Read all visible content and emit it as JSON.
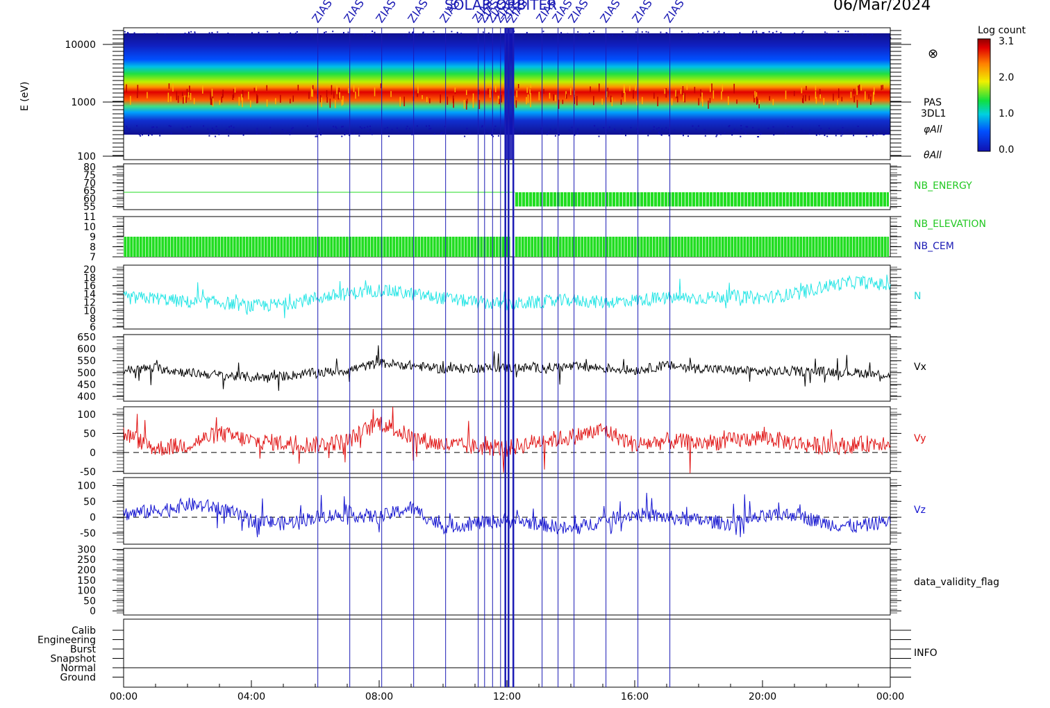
{
  "header": {
    "title": "SOLAR ORBITER",
    "date": "06/Mar/2024"
  },
  "colorbar": {
    "title": "Log count",
    "ticks": [
      "3.1",
      "2.0",
      "1.0",
      "0.0"
    ]
  },
  "event_labels": [
    "ZIAS",
    "ZIAS",
    "ZIAS",
    "ZIAS",
    "ZIAS",
    "ZIAS",
    "ZIAS",
    "ZIAS",
    "ZIAS",
    "ZIAS",
    "ZIAS",
    "ZIAS",
    "ZIAS",
    "ZIAS",
    "ZIAS",
    "ZIAS",
    "ZIAS"
  ],
  "chart_data": [
    {
      "type": "heatmap",
      "panel": "energy_spectrogram",
      "ylabel": "E (eV)",
      "yscale": "log",
      "ylim": [
        100,
        15000
      ],
      "yticks": [
        "10000",
        "1000",
        "100"
      ],
      "labels": [
        "PAS",
        "3DL1",
        "φAll",
        "θAll"
      ],
      "colorbar_range": [
        0.0,
        3.1
      ],
      "peak_energy_eV": 1300,
      "x_start": "00:00",
      "x_end": "00:00"
    },
    {
      "type": "line",
      "panel": "NB_ENERGY",
      "name": "NB_ENERGY",
      "yticks": [
        "80",
        "75",
        "70",
        "65",
        "60",
        "55"
      ],
      "ylim": [
        53,
        82
      ],
      "x": [
        "00:00",
        "12:15",
        "12:15",
        "24:00"
      ],
      "values": [
        64,
        64,
        55,
        64
      ]
    },
    {
      "type": "line",
      "panel": "NB_ELEVATION / NB_CEM",
      "series": [
        {
          "name": "NB_ELEVATION",
          "value": 11
        },
        {
          "name": "NB_CEM",
          "range": [
            7,
            9
          ]
        }
      ],
      "yticks": [
        "11",
        "10",
        "9",
        "8",
        "7"
      ],
      "ylim": [
        7,
        11
      ]
    },
    {
      "type": "line",
      "panel": "N",
      "name": "N",
      "yticks": [
        "20",
        "18",
        "16",
        "14",
        "12",
        "10",
        "8",
        "6"
      ],
      "ylim": [
        5.5,
        21
      ],
      "x": [
        0,
        1,
        2,
        3,
        4,
        5,
        6,
        7,
        8,
        9,
        10,
        11,
        12,
        13,
        14,
        15,
        16,
        17,
        18,
        19,
        20,
        21,
        22,
        23,
        24
      ],
      "values": [
        13,
        13,
        12,
        12,
        11,
        11.5,
        13,
        14,
        15,
        14,
        13,
        12,
        11.5,
        12,
        12.5,
        12,
        12.5,
        13,
        13,
        13.5,
        13,
        14,
        16,
        17,
        16
      ]
    },
    {
      "type": "line",
      "panel": "Vx",
      "name": "Vx",
      "yticks": [
        "650",
        "600",
        "550",
        "500",
        "450",
        "400"
      ],
      "ylim": [
        380,
        660
      ],
      "x": [
        0,
        1,
        2,
        3,
        4,
        5,
        6,
        7,
        8,
        9,
        10,
        11,
        12,
        13,
        14,
        15,
        16,
        17,
        18,
        19,
        20,
        21,
        22,
        23,
        24
      ],
      "values": [
        510,
        520,
        500,
        490,
        480,
        485,
        500,
        510,
        540,
        530,
        515,
        520,
        520,
        520,
        525,
        520,
        510,
        530,
        520,
        510,
        505,
        505,
        505,
        500,
        490
      ]
    },
    {
      "type": "line",
      "panel": "Vy",
      "name": "Vy",
      "yticks": [
        "100",
        "50",
        "0",
        "-50"
      ],
      "ylim": [
        -55,
        120
      ],
      "x": [
        0,
        1,
        2,
        3,
        4,
        5,
        6,
        7,
        8,
        9,
        10,
        11,
        12,
        13,
        14,
        15,
        16,
        17,
        18,
        19,
        20,
        21,
        22,
        23,
        24
      ],
      "values": [
        50,
        10,
        20,
        50,
        30,
        25,
        20,
        30,
        80,
        40,
        20,
        15,
        10,
        30,
        40,
        60,
        20,
        30,
        25,
        30,
        40,
        25,
        15,
        20,
        30
      ]
    },
    {
      "type": "line",
      "panel": "Vz",
      "name": "Vz",
      "yticks": [
        "100",
        "50",
        "0",
        "-50"
      ],
      "ylim": [
        -85,
        125
      ],
      "x": [
        0,
        1,
        2,
        3,
        4,
        5,
        6,
        7,
        8,
        9,
        10,
        11,
        12,
        13,
        14,
        15,
        16,
        17,
        18,
        19,
        20,
        21,
        22,
        23,
        24
      ],
      "values": [
        10,
        20,
        40,
        30,
        -10,
        -20,
        0,
        10,
        0,
        30,
        -30,
        -20,
        -10,
        -20,
        -40,
        -10,
        10,
        0,
        -10,
        -20,
        0,
        10,
        -20,
        -30,
        -10
      ]
    },
    {
      "type": "line",
      "panel": "data_validity_flag",
      "name": "data_validity_flag",
      "yticks": [
        "300",
        "250",
        "200",
        "150",
        "100",
        "50",
        "0"
      ],
      "ylim": [
        -20,
        305
      ]
    },
    {
      "type": "line",
      "panel": "INFO",
      "name": "INFO",
      "categories": [
        "Calib",
        "Engineering",
        "Burst",
        "Snapshot",
        "Normal",
        "Ground"
      ],
      "active_category": "Normal"
    }
  ],
  "panel_labels": {
    "nb_energy": "NB_ENERGY",
    "nb_elevation": "NB_ELEVATION",
    "nb_cem": "NB_CEM",
    "n": "N",
    "vx": "Vx",
    "vy": "Vy",
    "vz": "Vz",
    "validity": "data_validity_flag",
    "info": "INFO"
  },
  "x_axis": {
    "ticks": [
      "00:00",
      "04:00",
      "08:00",
      "12:00",
      "16:00",
      "20:00",
      "00:00"
    ]
  },
  "colors": {
    "axis": "#000000",
    "event_lines": "#1a1ab4",
    "nb_energy": "#22dd22",
    "n": "#22e5e5",
    "vx": "#000000",
    "vy": "#e01414",
    "vz": "#1414d0",
    "nb_cem_label": "#1a1ab4"
  }
}
